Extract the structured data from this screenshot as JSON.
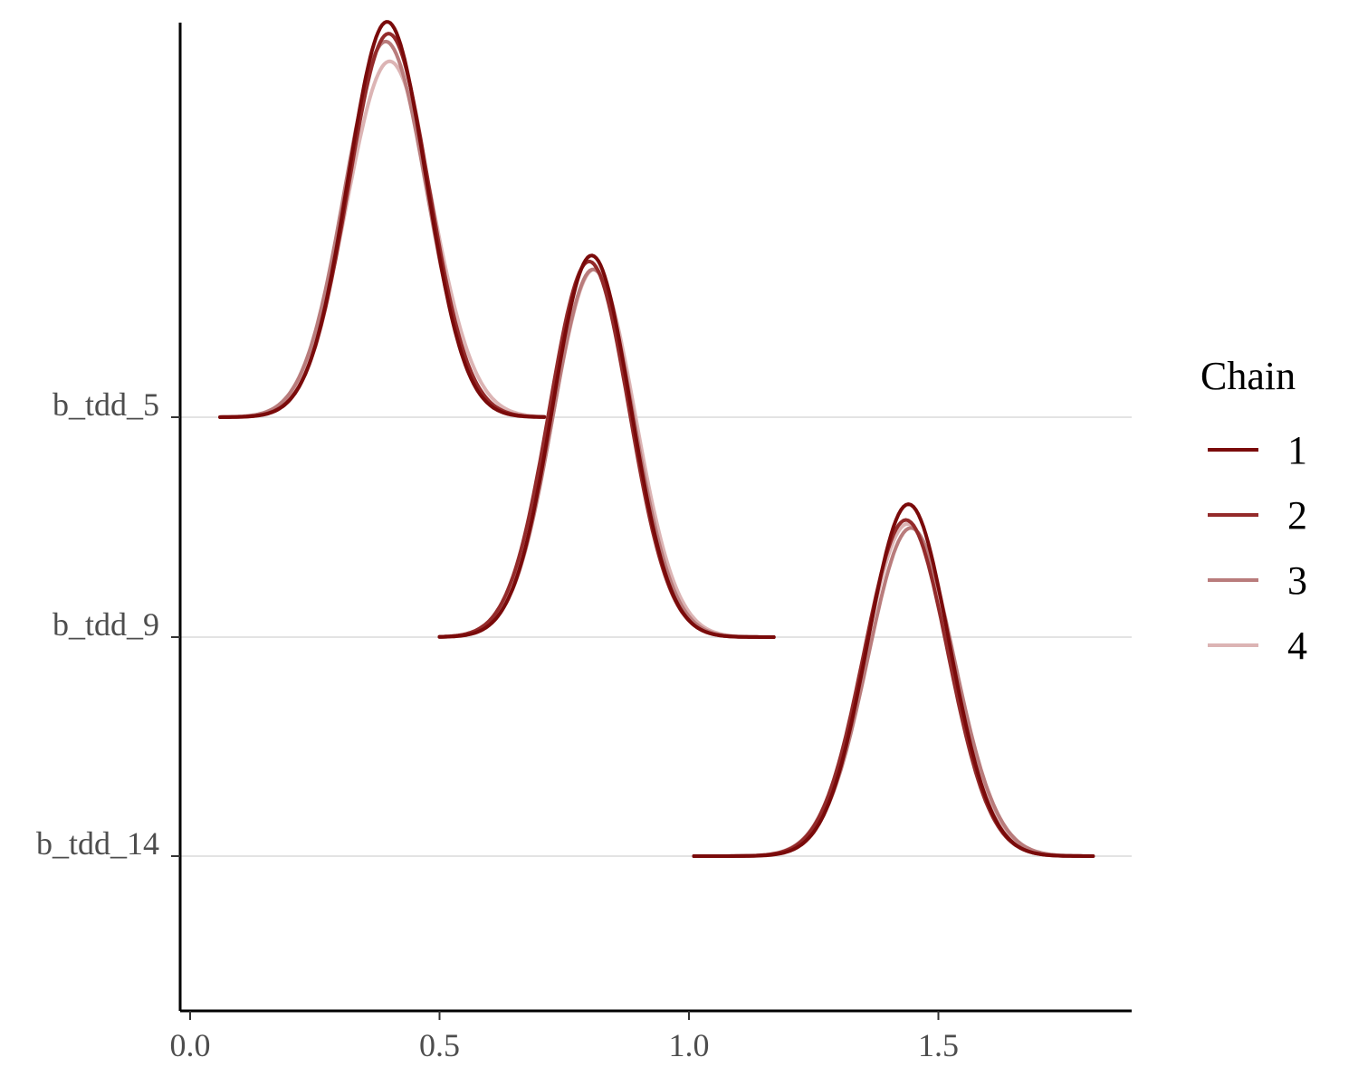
{
  "chart_data": {
    "type": "line",
    "subtype": "ridgeline-density",
    "title": "",
    "xlabel": "",
    "ylabel": "",
    "xlim": [
      -0.02,
      1.9
    ],
    "x_ticks": [
      0.0,
      0.5,
      1.0,
      1.5
    ],
    "x_tick_labels": [
      "0.0",
      "0.5",
      "1.0",
      "1.5"
    ],
    "grid": "horizontal baselines only",
    "legend": {
      "title": "Chain",
      "position": "right"
    },
    "parameters": [
      {
        "name": "b_tdd_5",
        "min": 0.06,
        "max": 0.71,
        "series": [
          {
            "name": "1",
            "mean": 0.395,
            "sd": 0.078,
            "peak": 1.0
          },
          {
            "name": "2",
            "mean": 0.398,
            "sd": 0.08,
            "peak": 0.97
          },
          {
            "name": "3",
            "mean": 0.392,
            "sd": 0.082,
            "peak": 0.95
          },
          {
            "name": "4",
            "mean": 0.4,
            "sd": 0.085,
            "peak": 0.9
          }
        ]
      },
      {
        "name": "b_tdd_9",
        "min": 0.5,
        "max": 1.17,
        "series": [
          {
            "name": "1",
            "mean": 0.805,
            "sd": 0.078,
            "peak": 0.965
          },
          {
            "name": "2",
            "mean": 0.8,
            "sd": 0.08,
            "peak": 0.95
          },
          {
            "name": "3",
            "mean": 0.808,
            "sd": 0.08,
            "peak": 0.93
          },
          {
            "name": "4",
            "mean": 0.81,
            "sd": 0.082,
            "peak": 0.93
          }
        ]
      },
      {
        "name": "b_tdd_14",
        "min": 1.01,
        "max": 1.81,
        "series": [
          {
            "name": "1",
            "mean": 1.44,
            "sd": 0.082,
            "peak": 0.89
          },
          {
            "name": "2",
            "mean": 1.435,
            "sd": 0.084,
            "peak": 0.85
          },
          {
            "name": "3",
            "mean": 1.445,
            "sd": 0.086,
            "peak": 0.83
          },
          {
            "name": "4",
            "mean": 1.438,
            "sd": 0.086,
            "peak": 0.84
          }
        ]
      }
    ],
    "series_colors": {
      "1": "#7a0a0a",
      "2": "#942a2a",
      "3": "#b97c7c",
      "4": "#dcb4b4"
    }
  }
}
